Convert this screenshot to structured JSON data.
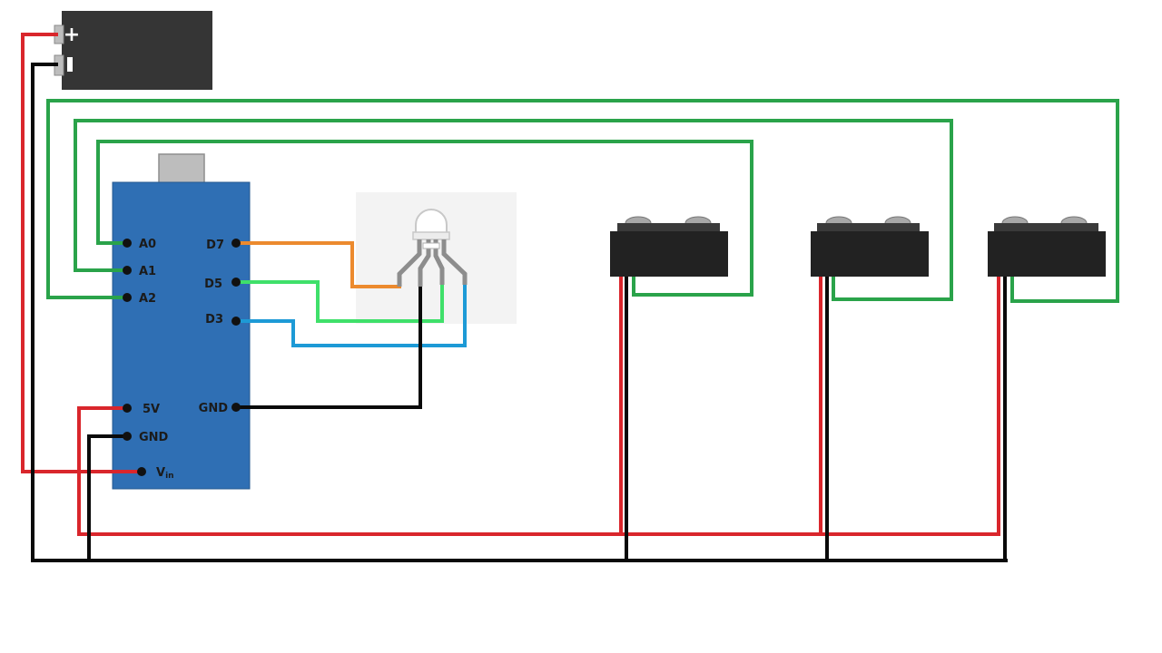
{
  "colors": {
    "power": "#d9262c",
    "ground": "#0a0a0a",
    "sensor_signal": "#2aa34a",
    "led_red": "#ec8a2e",
    "led_green": "#3fe06a",
    "led_blue": "#1d9ad6",
    "board": "#2f6fb4",
    "battery": "#353535",
    "sensor_body": "#222222"
  },
  "battery": {
    "plus_symbol": "+",
    "minus_symbol": "−"
  },
  "board": {
    "pins_left": [
      "A0",
      "A1",
      "A2"
    ],
    "pins_right": [
      "D7",
      "D5",
      "D3"
    ],
    "power_left": [
      "5V",
      "GND"
    ],
    "vin_main": "V",
    "vin_sub": "in",
    "gnd_right": "GND"
  },
  "sensors": [
    {
      "icon": "ir-sensor-icon"
    },
    {
      "icon": "ir-sensor-icon"
    },
    {
      "icon": "ir-sensor-icon"
    }
  ],
  "led": {
    "icon": "rgb-led-icon"
  }
}
